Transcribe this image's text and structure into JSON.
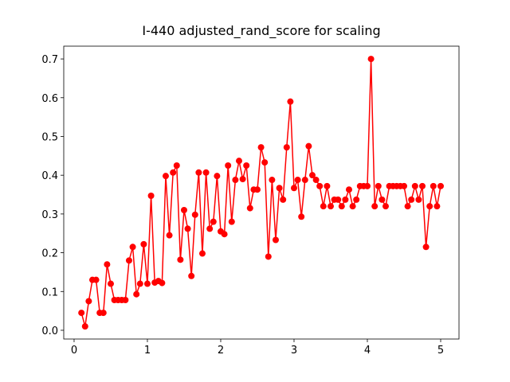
{
  "chart_data": {
    "type": "line",
    "title": "I-440 adjusted_rand_score for scaling",
    "x": [
      0.1,
      0.15,
      0.2,
      0.25,
      0.3,
      0.35,
      0.4,
      0.45,
      0.5,
      0.55,
      0.6,
      0.65,
      0.7,
      0.75,
      0.8,
      0.85,
      0.9,
      0.95,
      1.0,
      1.05,
      1.1,
      1.15,
      1.2,
      1.25,
      1.3,
      1.35,
      1.4,
      1.45,
      1.5,
      1.55,
      1.6,
      1.65,
      1.7,
      1.75,
      1.8,
      1.85,
      1.9,
      1.95,
      2.0,
      2.05,
      2.1,
      2.15,
      2.2,
      2.25,
      2.3,
      2.35,
      2.4,
      2.45,
      2.5,
      2.55,
      2.6,
      2.65,
      2.7,
      2.75,
      2.8,
      2.85,
      2.9,
      2.95,
      3.0,
      3.05,
      3.1,
      3.15,
      3.2,
      3.25,
      3.3,
      3.35,
      3.4,
      3.45,
      3.5,
      3.55,
      3.6,
      3.65,
      3.7,
      3.75,
      3.8,
      3.85,
      3.9,
      3.95,
      4.0,
      4.05,
      4.1,
      4.15,
      4.2,
      4.25,
      4.3,
      4.35,
      4.4,
      4.45,
      4.5,
      4.55,
      4.6,
      4.65,
      4.7,
      4.75,
      4.8,
      4.85,
      4.9,
      4.95,
      5.0
    ],
    "series": [
      {
        "color": "#ff0000",
        "values": [
          0.045,
          0.01,
          0.075,
          0.13,
          0.13,
          0.045,
          0.045,
          0.17,
          0.12,
          0.078,
          0.078,
          0.078,
          0.078,
          0.18,
          0.215,
          0.093,
          0.12,
          0.222,
          0.12,
          0.347,
          0.123,
          0.127,
          0.122,
          0.398,
          0.245,
          0.407,
          0.425,
          0.182,
          0.31,
          0.262,
          0.14,
          0.298,
          0.407,
          0.198,
          0.407,
          0.262,
          0.28,
          0.398,
          0.255,
          0.248,
          0.425,
          0.28,
          0.388,
          0.437,
          0.39,
          0.425,
          0.315,
          0.363,
          0.363,
          0.472,
          0.433,
          0.19,
          0.388,
          0.233,
          0.367,
          0.337,
          0.472,
          0.59,
          0.367,
          0.388,
          0.293,
          0.388,
          0.475,
          0.4,
          0.388,
          0.372,
          0.32,
          0.372,
          0.32,
          0.337,
          0.337,
          0.32,
          0.337,
          0.363,
          0.32,
          0.337,
          0.372,
          0.372,
          0.372,
          0.7,
          0.32,
          0.372,
          0.337,
          0.32,
          0.372,
          0.372,
          0.372,
          0.372,
          0.372,
          0.32,
          0.337,
          0.372,
          0.337,
          0.372,
          0.215,
          0.32,
          0.372,
          0.32,
          0.372
        ]
      }
    ],
    "xlim": [
      -0.141,
      5.25
    ],
    "ylim": [
      -0.0226,
      0.733
    ],
    "xticks": [
      0,
      1,
      2,
      3,
      4,
      5
    ],
    "yticks": [
      {
        "value": 0,
        "label": "0.0"
      },
      0.1,
      0.2,
      0.3,
      0.4,
      0.5,
      0.6,
      0.7
    ]
  }
}
